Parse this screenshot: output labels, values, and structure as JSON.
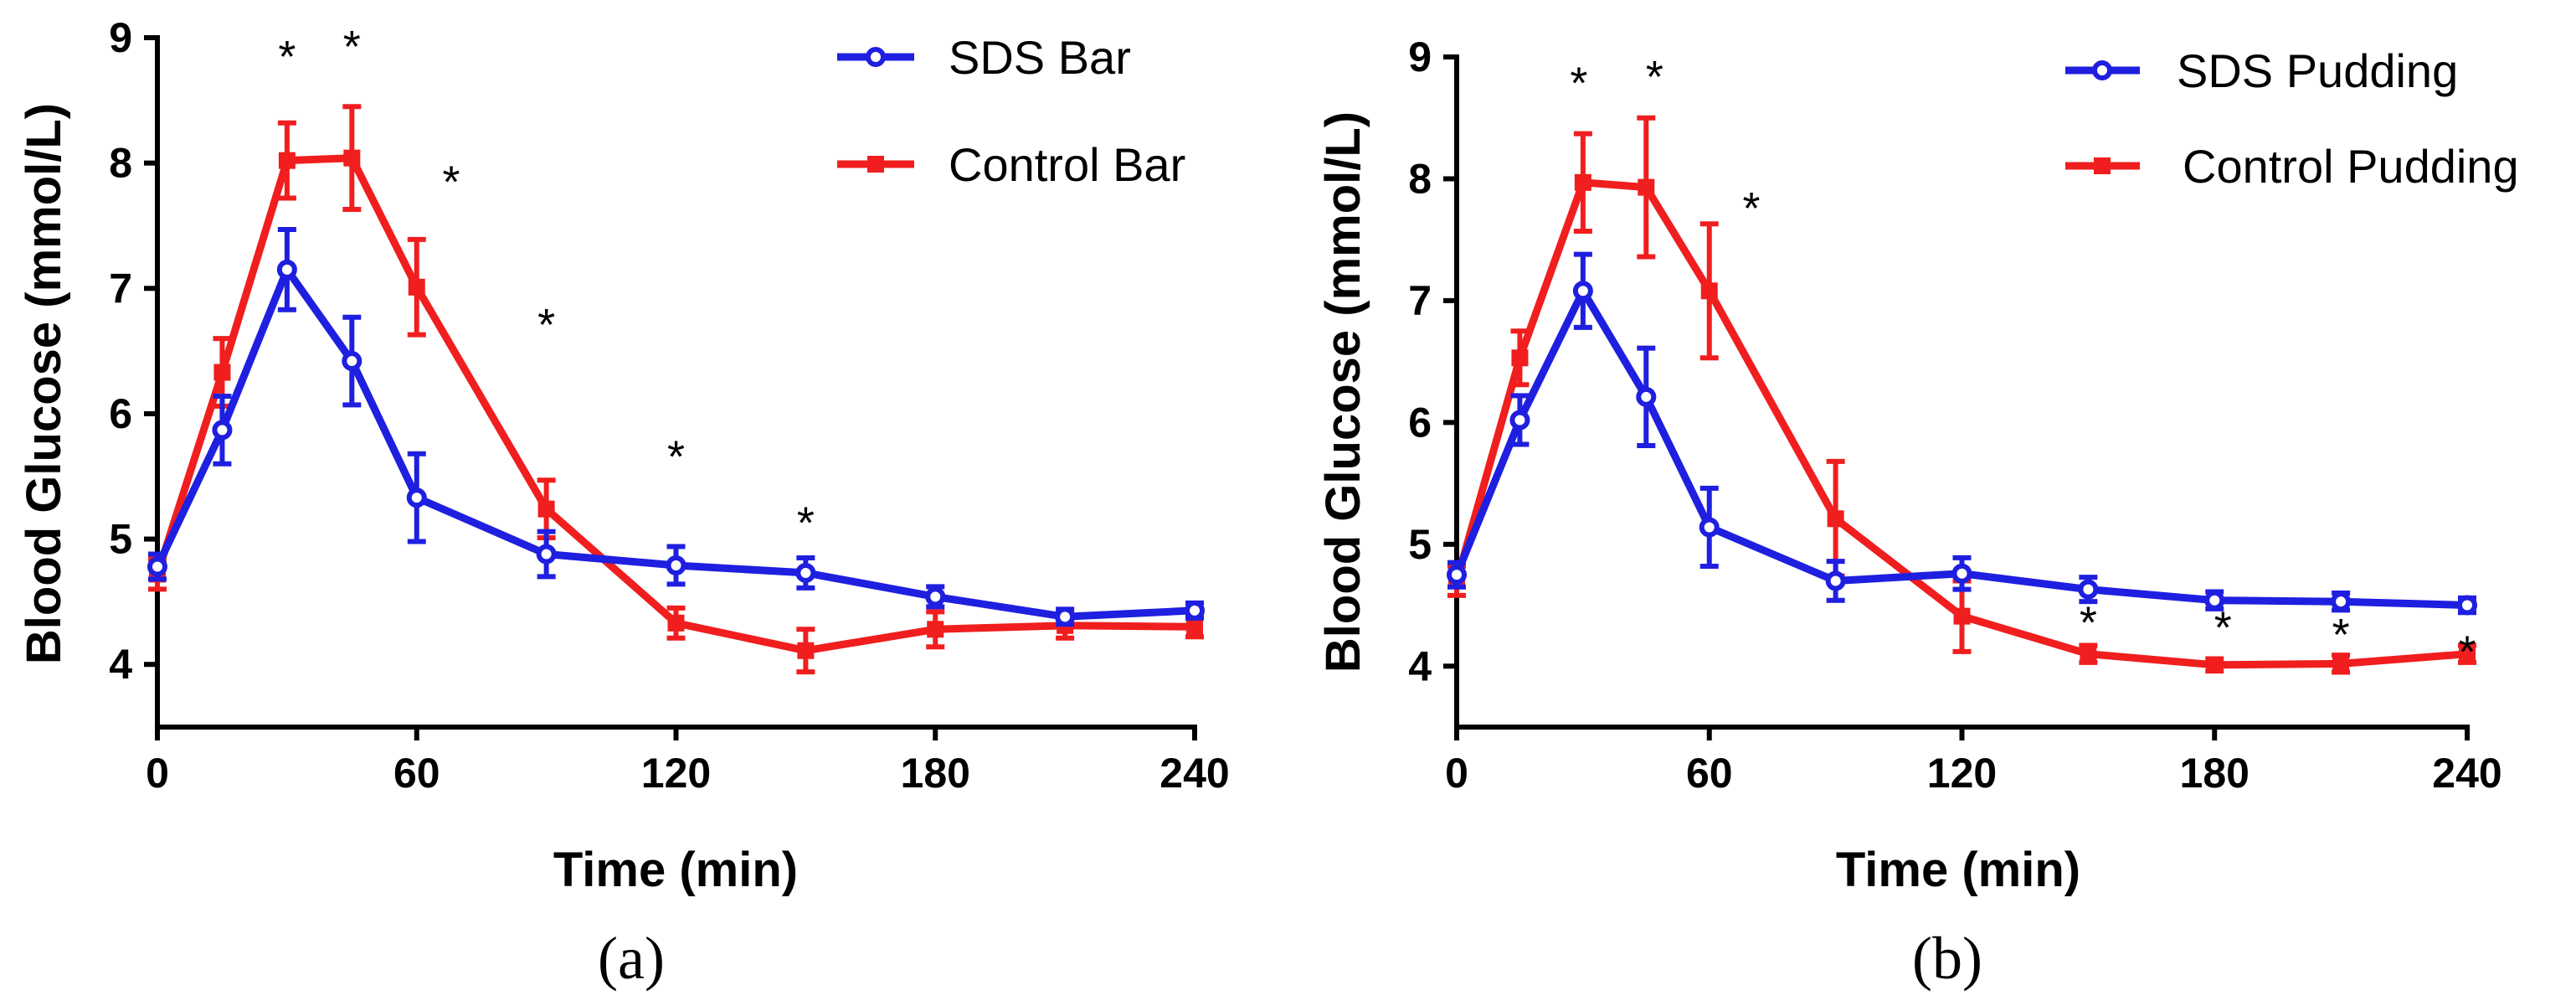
{
  "chart_data": [
    {
      "type": "line",
      "panel_label": "(a)",
      "xlabel": "Time  (min)",
      "ylabel": "Blood Glucose (mmol/L)",
      "xlim": [
        0,
        240
      ],
      "ylim": [
        3.5,
        9
      ],
      "xticks": [
        0,
        60,
        120,
        180,
        240
      ],
      "yticks": [
        4,
        5,
        6,
        7,
        8,
        9
      ],
      "legend_position": "top-right",
      "series": [
        {
          "name": "SDS Bar",
          "color": "#1f1fe0",
          "marker": "open-circle",
          "x": [
            0,
            15,
            30,
            45,
            60,
            90,
            120,
            150,
            180,
            210,
            240
          ],
          "y": [
            4.78,
            5.87,
            7.15,
            6.42,
            5.33,
            4.88,
            4.79,
            4.73,
            4.54,
            4.38,
            4.43
          ],
          "err": [
            0.1,
            0.27,
            0.32,
            0.35,
            0.35,
            0.18,
            0.15,
            0.12,
            0.08,
            0.06,
            0.06
          ]
        },
        {
          "name": "Control Bar",
          "color": "#f01e1e",
          "marker": "square",
          "x": [
            0,
            15,
            30,
            45,
            60,
            90,
            120,
            150,
            180,
            210,
            240
          ],
          "y": [
            4.72,
            6.33,
            8.02,
            8.04,
            7.01,
            5.24,
            4.33,
            4.11,
            4.28,
            4.31,
            4.3
          ],
          "err": [
            0.12,
            0.27,
            0.3,
            0.41,
            0.38,
            0.23,
            0.12,
            0.17,
            0.14,
            0.1,
            0.08
          ]
        }
      ],
      "significance": [
        {
          "x": 30,
          "y": 8.9,
          "label": "*"
        },
        {
          "x": 45,
          "y": 8.98,
          "label": "*"
        },
        {
          "x": 68,
          "y": 7.9,
          "label": "*"
        },
        {
          "x": 90,
          "y": 6.76,
          "label": "*"
        },
        {
          "x": 120,
          "y": 5.71,
          "label": "*"
        },
        {
          "x": 150,
          "y": 5.18,
          "label": "*"
        }
      ]
    },
    {
      "type": "line",
      "panel_label": "(b)",
      "xlabel": "Time (min)",
      "ylabel": "Blood Glucose (mmol/L)",
      "xlim": [
        0,
        240
      ],
      "ylim": [
        3.5,
        9
      ],
      "xticks": [
        0,
        60,
        120,
        180,
        240
      ],
      "yticks": [
        4,
        5,
        6,
        7,
        8,
        9
      ],
      "legend_position": "top-right",
      "series": [
        {
          "name": "SDS Pudding",
          "color": "#1f1fe0",
          "marker": "open-circle",
          "x": [
            0,
            15,
            30,
            45,
            60,
            90,
            120,
            150,
            180,
            210,
            240
          ],
          "y": [
            4.75,
            6.02,
            7.08,
            6.21,
            5.14,
            4.7,
            4.76,
            4.63,
            4.54,
            4.53,
            4.5
          ],
          "err": [
            0.1,
            0.2,
            0.3,
            0.4,
            0.32,
            0.16,
            0.13,
            0.1,
            0.07,
            0.07,
            0.06
          ]
        },
        {
          "name": "Control Pudding",
          "color": "#f01e1e",
          "marker": "square",
          "x": [
            0,
            15,
            30,
            45,
            60,
            90,
            120,
            150,
            180,
            210,
            240
          ],
          "y": [
            4.7,
            6.53,
            7.97,
            7.93,
            7.08,
            5.21,
            4.41,
            4.1,
            4.01,
            4.02,
            4.1
          ],
          "err": [
            0.12,
            0.22,
            0.4,
            0.57,
            0.55,
            0.47,
            0.29,
            0.07,
            0.05,
            0.07,
            0.07
          ]
        }
      ],
      "significance": [
        {
          "x": 29,
          "y": 8.84,
          "label": "*"
        },
        {
          "x": 47,
          "y": 8.89,
          "label": "*"
        },
        {
          "x": 70,
          "y": 7.81,
          "label": "*"
        },
        {
          "x": 150,
          "y": 4.41,
          "label": "*"
        },
        {
          "x": 182,
          "y": 4.37,
          "label": "*"
        },
        {
          "x": 210,
          "y": 4.31,
          "label": "*"
        },
        {
          "x": 240,
          "y": 4.17,
          "label": "*"
        }
      ]
    }
  ]
}
